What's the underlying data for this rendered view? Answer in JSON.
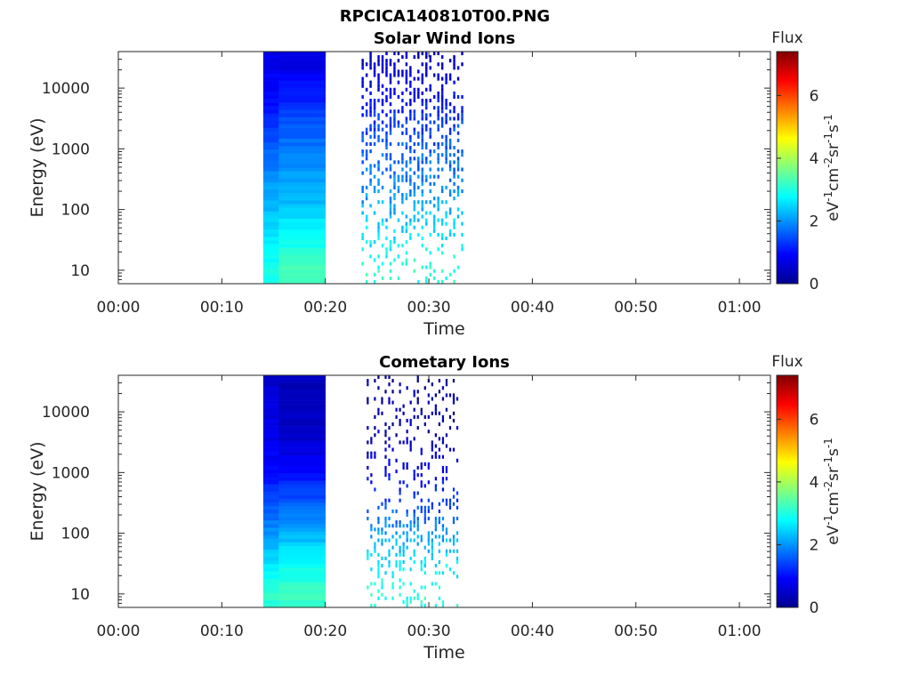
{
  "figure": {
    "title": "RPCICA140810T00.PNG"
  },
  "chart_data": [
    {
      "type": "heatmap",
      "title": "Solar Wind Ions",
      "xlabel": "Time",
      "ylabel": "Energy (eV)",
      "x_tick_labels": [
        "00:00",
        "00:10",
        "00:20",
        "00:30",
        "00:40",
        "00:50",
        "01:00"
      ],
      "x_range_minutes": [
        0,
        63
      ],
      "y_scale": "log",
      "y_tick_labels": [
        "10",
        "100",
        "1000",
        "10000"
      ],
      "y_tick_values": [
        10,
        100,
        1000,
        10000
      ],
      "y_range": [
        6,
        40000
      ],
      "colorbar": {
        "title": "Flux",
        "units": "eV-1cm-2sr-1s-1",
        "ticks": [
          "0",
          "2",
          "4",
          "6"
        ],
        "range": [
          0,
          7.4
        ],
        "colormap": "jet"
      },
      "data_blocks": [
        {
          "time_min": [
            14.0,
            15.5
          ],
          "energy_band_flux": [
            [
              10,
              2.9
            ],
            [
              40,
              2.6
            ],
            [
              100,
              2.3
            ],
            [
              300,
              2.0
            ],
            [
              1000,
              1.6
            ],
            [
              3000,
              1.2
            ],
            [
              10000,
              0.9
            ],
            [
              30000,
              0.8
            ]
          ]
        },
        {
          "time_min": [
            15.5,
            20.0
          ],
          "energy_band_flux": [
            [
              10,
              3.3
            ],
            [
              40,
              2.8
            ],
            [
              100,
              2.4
            ],
            [
              300,
              2.1
            ],
            [
              1000,
              1.8
            ],
            [
              3000,
              1.5
            ],
            [
              10000,
              1.0
            ],
            [
              30000,
              0.7
            ]
          ]
        }
      ],
      "sparse_region_min": [
        23.5,
        33.5
      ]
    },
    {
      "type": "heatmap",
      "title": "Cometary Ions",
      "xlabel": "Time",
      "ylabel": "Energy (eV)",
      "x_tick_labels": [
        "00:00",
        "00:10",
        "00:20",
        "00:30",
        "00:40",
        "00:50",
        "01:00"
      ],
      "x_range_minutes": [
        0,
        63
      ],
      "y_scale": "log",
      "y_tick_labels": [
        "10",
        "100",
        "1000",
        "10000"
      ],
      "y_tick_values": [
        10,
        100,
        1000,
        10000
      ],
      "y_range": [
        6,
        40000
      ],
      "colorbar": {
        "title": "Flux",
        "units": "eV-1cm-2sr-1s-1",
        "ticks": [
          "0",
          "2",
          "4",
          "6"
        ],
        "range": [
          0,
          7.4
        ],
        "colormap": "jet"
      },
      "data_blocks": [
        {
          "time_min": [
            14.0,
            15.5
          ],
          "energy_band_flux": [
            [
              10,
              3.1
            ],
            [
              40,
              2.5
            ],
            [
              100,
              2.0
            ],
            [
              300,
              1.5
            ],
            [
              1000,
              1.0
            ],
            [
              3000,
              0.8
            ],
            [
              10000,
              0.7
            ],
            [
              30000,
              0.6
            ]
          ]
        },
        {
          "time_min": [
            15.5,
            20.0
          ],
          "energy_band_flux": [
            [
              10,
              3.2
            ],
            [
              40,
              2.7
            ],
            [
              100,
              2.2
            ],
            [
              300,
              1.6
            ],
            [
              1000,
              1.0
            ],
            [
              3000,
              0.6
            ],
            [
              10000,
              0.5
            ],
            [
              30000,
              0.4
            ]
          ]
        }
      ],
      "sparse_region_min": [
        24.0,
        33.0
      ]
    }
  ]
}
